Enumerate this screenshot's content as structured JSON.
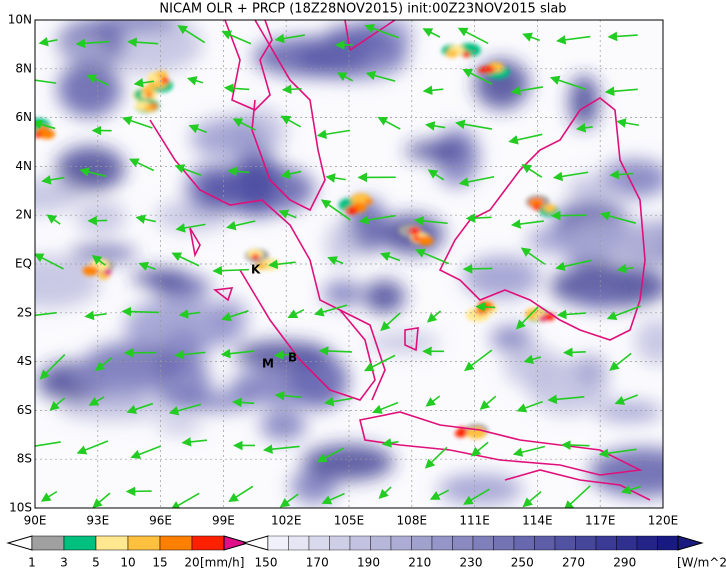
{
  "title": "NICAM OLR + PRCP (18Z28NOV2015) init:00Z23NOV2015 slab",
  "lat_labels": [
    "10N",
    "8N",
    "6N",
    "4N",
    "2N",
    "EQ",
    "2S",
    "4S",
    "6S",
    "8S",
    "10S"
  ],
  "lon_labels": [
    "90E",
    "93E",
    "96E",
    "99E",
    "102E",
    "105E",
    "108E",
    "111E",
    "114E",
    "117E",
    "120E"
  ],
  "markers": [
    "K",
    "M",
    "B"
  ],
  "precip_legend": {
    "labels": [
      "1",
      "3",
      "5",
      "10",
      "15",
      "20"
    ],
    "unit": "[mm/h]"
  },
  "olr_legend": {
    "labels": [
      "150",
      "170",
      "190",
      "210",
      "230",
      "250",
      "270",
      "290"
    ],
    "unit": "[W/m^2]"
  }
}
